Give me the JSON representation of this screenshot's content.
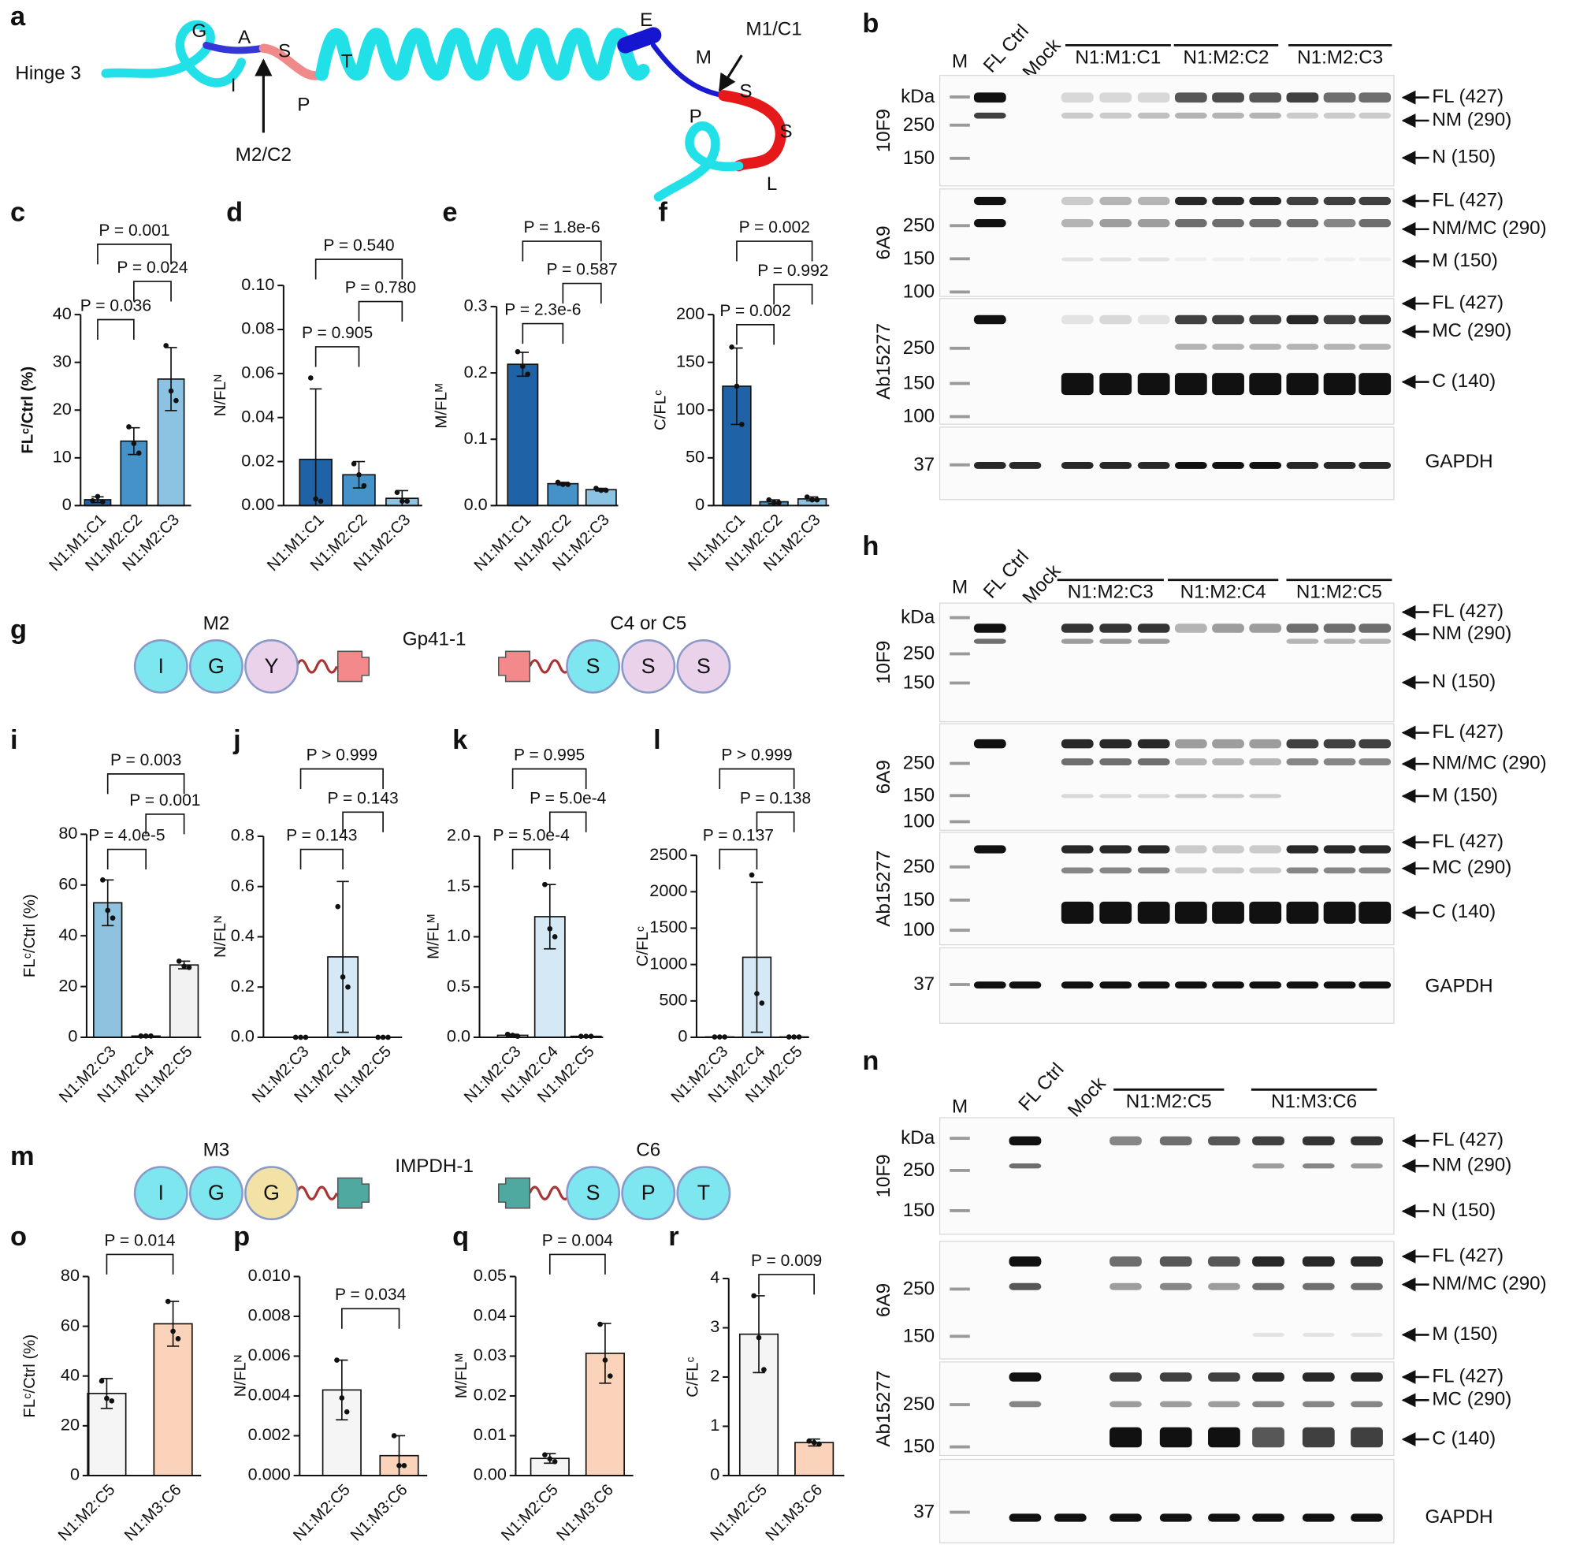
{
  "chart_data": [
    {
      "type": "bar",
      "panel": "c",
      "ylabel": "FLᶜ/Ctrl (%)",
      "categories": [
        "N1:M1:C1",
        "N1:M2:C2",
        "N1:M2:C3"
      ],
      "values": [
        1.23,
        13.5,
        26.5
      ],
      "errors": [
        0.6,
        2.8,
        6.6
      ],
      "points": [
        [
          1.0,
          1.9,
          0.8
        ],
        [
          16.5,
          13,
          11
        ],
        [
          33.5,
          24,
          22
        ]
      ],
      "colors": [
        "#1f63a6",
        "#4592c8",
        "#8cc3e2"
      ],
      "ylim": [
        0,
        40
      ],
      "yticks": [
        0,
        10,
        20,
        30,
        40
      ],
      "annotations": [
        {
          "text": "P = 0.001",
          "from": "N1:M1:C1",
          "to": "N1:M2:C3"
        },
        {
          "text": "P = 0.024",
          "from": "N1:M2:C2",
          "to": "N1:M2:C3"
        },
        {
          "text": "P = 0.036",
          "from": "N1:M1:C1",
          "to": "N1:M2:C2"
        }
      ]
    },
    {
      "type": "bar",
      "panel": "d",
      "ylabel": "N/FLᴺ",
      "categories": [
        "N1:M1:C1",
        "N1:M2:C2",
        "N1:M2:C3"
      ],
      "values": [
        0.021,
        0.014,
        0.0033
      ],
      "errors": [
        0.032,
        0.006,
        0.0035
      ],
      "points": [
        [
          0.058,
          0.003,
          0.002
        ],
        [
          0.019,
          0.014,
          0.009
        ],
        [
          0.006,
          0.002,
          0.002
        ]
      ],
      "colors": [
        "#1f63a6",
        "#4592c8",
        "#8cc3e2"
      ],
      "ylim": [
        0,
        0.1
      ],
      "yticks": [
        {
          "value": 0,
          "label": "0.00"
        },
        0.02,
        0.04,
        0.06,
        0.08,
        {
          "value": 0.1,
          "label": "0.10"
        }
      ],
      "annotations": [
        {
          "text": "P = 0.540",
          "from": "N1:M1:C1",
          "to": "N1:M2:C3"
        },
        {
          "text": "P = 0.780",
          "from": "N1:M2:C2",
          "to": "N1:M2:C3"
        },
        {
          "text": "P = 0.905",
          "from": "N1:M1:C1",
          "to": "N1:M2:C2"
        }
      ]
    },
    {
      "type": "bar",
      "panel": "e",
      "ylabel": "M/FLᴹ",
      "categories": [
        "N1:M1:C1",
        "N1:M2:C2",
        "N1:M2:C3"
      ],
      "values": [
        0.213,
        0.033,
        0.024
      ],
      "errors": [
        0.018,
        0.002,
        0.002
      ],
      "points": [
        [
          0.232,
          0.21,
          0.198
        ],
        [
          0.035,
          0.032,
          0.032
        ],
        [
          0.026,
          0.023,
          0.023
        ]
      ],
      "colors": [
        "#1f63a6",
        "#4592c8",
        "#8cc3e2"
      ],
      "ylim": [
        0,
        0.3
      ],
      "yticks": [
        {
          "value": 0,
          "label": "0.0"
        },
        0.1,
        0.2,
        0.3
      ],
      "annotations": [
        {
          "text": "P = 1.8e-6",
          "from": "N1:M1:C1",
          "to": "N1:M2:C3"
        },
        {
          "text": "P = 0.587",
          "from": "N1:M2:C2",
          "to": "N1:M2:C3"
        },
        {
          "text": "P = 2.3e-6",
          "from": "N1:M1:C1",
          "to": "N1:M2:C2"
        }
      ]
    },
    {
      "type": "bar",
      "panel": "f",
      "ylabel": "C/FLᶜ",
      "categories": [
        "N1:M1:C1",
        "N1:M2:C2",
        "N1:M2:C3"
      ],
      "values": [
        125,
        4,
        7
      ],
      "errors": [
        40,
        2,
        2
      ],
      "points": [
        [
          166,
          125,
          85
        ],
        [
          6,
          3,
          3
        ],
        [
          9,
          6,
          6
        ]
      ],
      "colors": [
        "#1f63a6",
        "#4592c8",
        "#8cc3e2"
      ],
      "ylim": [
        0,
        200
      ],
      "yticks": [
        0,
        50,
        100,
        150,
        200
      ],
      "annotations": [
        {
          "text": "P = 0.002",
          "from": "N1:M1:C1",
          "to": "N1:M2:C3"
        },
        {
          "text": "P = 0.992",
          "from": "N1:M2:C2",
          "to": "N1:M2:C3"
        },
        {
          "text": "P = 0.002",
          "from": "N1:M1:C1",
          "to": "N1:M2:C2"
        }
      ]
    },
    {
      "type": "bar",
      "panel": "i",
      "ylabel": "FLᶜ/Ctrl (%)",
      "categories": [
        "N1:M2:C3",
        "N1:M2:C4",
        "N1:M2:C5"
      ],
      "values": [
        53,
        0.5,
        28.5
      ],
      "errors": [
        9,
        0.3,
        1.5
      ],
      "points": [
        [
          62,
          50,
          47
        ],
        [
          0.5,
          0.5,
          0.5
        ],
        [
          30,
          28,
          27.5
        ]
      ],
      "colors": [
        "#8fc2de",
        "#ffffff",
        "#f2f2f2"
      ],
      "ylim": [
        0,
        80
      ],
      "yticks": [
        0,
        20,
        40,
        60,
        80
      ],
      "annotations": [
        {
          "text": "P = 0.003",
          "from": "N1:M2:C3",
          "to": "N1:M2:C5"
        },
        {
          "text": "P = 0.001",
          "from": "N1:M2:C4",
          "to": "N1:M2:C5"
        },
        {
          "text": "P = 4.0e-5",
          "from": "N1:M2:C3",
          "to": "N1:M2:C4"
        }
      ]
    },
    {
      "type": "bar",
      "panel": "j",
      "ylabel": "N/FLᴺ",
      "categories": [
        "N1:M2:C3",
        "N1:M2:C4",
        "N1:M2:C5"
      ],
      "values": [
        0,
        0.32,
        0
      ],
      "errors": [
        0,
        0.3,
        0
      ],
      "points": [
        [
          0,
          0,
          0
        ],
        [
          0.52,
          0.24,
          0.2
        ],
        [
          0,
          0,
          0
        ]
      ],
      "colors": [
        "#ffffff",
        "#d4e8f5",
        "#ffffff"
      ],
      "ylim": [
        0,
        0.8
      ],
      "yticks": [
        {
          "value": 0,
          "label": "0.0"
        },
        0.2,
        0.4,
        0.6,
        0.8
      ],
      "annotations": [
        {
          "text": "P > 0.999",
          "from": "N1:M2:C3",
          "to": "N1:M2:C5"
        },
        {
          "text": "P = 0.143",
          "from": "N1:M2:C4",
          "to": "N1:M2:C5"
        },
        {
          "text": "P = 0.143",
          "from": "N1:M2:C3",
          "to": "N1:M2:C4"
        }
      ]
    },
    {
      "type": "bar",
      "panel": "k",
      "ylabel": "M/FLᴹ",
      "categories": [
        "N1:M2:C3",
        "N1:M2:C4",
        "N1:M2:C5"
      ],
      "values": [
        0.02,
        1.2,
        0.01
      ],
      "errors": [
        0.01,
        0.32,
        0.005
      ],
      "points": [
        [
          0.03,
          0.02,
          0.01
        ],
        [
          1.52,
          1.08,
          1.0
        ],
        [
          0.01,
          0.01,
          0.01
        ]
      ],
      "colors": [
        "#ffffff",
        "#d4e8f5",
        "#ffffff"
      ],
      "ylim": [
        0,
        2
      ],
      "yticks": [
        {
          "value": 0,
          "label": "0.0"
        },
        0.5,
        {
          "value": 1,
          "label": "1.0"
        },
        1.5,
        {
          "value": 2,
          "label": "2.0"
        }
      ],
      "annotations": [
        {
          "text": "P = 0.995",
          "from": "N1:M2:C3",
          "to": "N1:M2:C5"
        },
        {
          "text": "P = 5.0e-4",
          "from": "N1:M2:C4",
          "to": "N1:M2:C5"
        },
        {
          "text": "P = 5.0e-4",
          "from": "N1:M2:C3",
          "to": "N1:M2:C4"
        }
      ]
    },
    {
      "type": "bar",
      "panel": "l",
      "ylabel": "C/FLᶜ",
      "categories": [
        "N1:M2:C3",
        "N1:M2:C4",
        "N1:M2:C5"
      ],
      "values": [
        5,
        1100,
        5
      ],
      "errors": [
        2,
        1030,
        2
      ],
      "points": [
        [
          5,
          5,
          5
        ],
        [
          2230,
          600,
          470
        ],
        [
          5,
          5,
          5
        ]
      ],
      "colors": [
        "#ffffff",
        "#d4e8f5",
        "#ffffff"
      ],
      "ylim": [
        0,
        2500
      ],
      "yticks": [
        0,
        500,
        1000,
        1500,
        2000,
        2500
      ],
      "annotations": [
        {
          "text": "P > 0.999",
          "from": "N1:M2:C3",
          "to": "N1:M2:C5"
        },
        {
          "text": "P = 0.138",
          "from": "N1:M2:C4",
          "to": "N1:M2:C5"
        },
        {
          "text": "P = 0.137",
          "from": "N1:M2:C3",
          "to": "N1:M2:C4"
        }
      ]
    },
    {
      "type": "bar",
      "panel": "o",
      "ylabel": "FLᶜ/Ctrl (%)",
      "categories": [
        "N1:M2:C5",
        "N1:M3:C6"
      ],
      "values": [
        33,
        61
      ],
      "errors": [
        6,
        9
      ],
      "points": [
        [
          38,
          31,
          30
        ],
        [
          70,
          58,
          55
        ]
      ],
      "colors": [
        "#f5f5f5",
        "#fbd3ba"
      ],
      "ylim": [
        0,
        80
      ],
      "yticks": [
        0,
        20,
        40,
        60,
        80
      ],
      "annotations": [
        {
          "text": "P = 0.014",
          "from": "N1:M2:C5",
          "to": "N1:M3:C6"
        }
      ]
    },
    {
      "type": "bar",
      "panel": "p",
      "ylabel": "N/FLᴺ",
      "categories": [
        "N1:M2:C5",
        "N1:M3:C6"
      ],
      "values": [
        0.0043,
        0.001
      ],
      "errors": [
        0.0015,
        0.001
      ],
      "points": [
        [
          0.0058,
          0.0039,
          0.0032
        ],
        [
          0.002,
          0.0005,
          0.0005
        ]
      ],
      "colors": [
        "#f5f5f5",
        "#fbd3ba"
      ],
      "ylim": [
        0,
        0.01
      ],
      "yticks": [
        {
          "value": 0,
          "label": "0.000"
        },
        0.002,
        0.004,
        0.006,
        0.008,
        {
          "value": 0.01,
          "label": "0.010"
        }
      ],
      "annotations": [
        {
          "text": "P = 0.034",
          "from": "N1:M2:C5",
          "to": "N1:M3:C6"
        }
      ]
    },
    {
      "type": "bar",
      "panel": "q",
      "ylabel": "M/FLᴹ",
      "categories": [
        "N1:M2:C5",
        "N1:M3:C6"
      ],
      "values": [
        0.0043,
        0.0307
      ],
      "errors": [
        0.0012,
        0.0075
      ],
      "points": [
        [
          0.0052,
          0.0042,
          0.0035
        ],
        [
          0.038,
          0.029,
          0.025
        ]
      ],
      "colors": [
        "#f5f5f5",
        "#fbd3ba"
      ],
      "ylim": [
        0,
        0.05
      ],
      "yticks": [
        {
          "value": 0,
          "label": "0.00"
        },
        0.01,
        0.02,
        0.03,
        0.04,
        0.05
      ],
      "annotations": [
        {
          "text": "P = 0.004",
          "from": "N1:M2:C5",
          "to": "N1:M3:C6"
        }
      ]
    },
    {
      "type": "bar",
      "panel": "r",
      "ylabel": "C/FLᶜ",
      "categories": [
        "N1:M2:C5",
        "N1:M3:C6"
      ],
      "values": [
        2.87,
        0.67
      ],
      "errors": [
        0.78,
        0.07
      ],
      "points": [
        [
          3.65,
          2.8,
          2.15
        ],
        [
          0.7,
          0.67,
          0.64
        ]
      ],
      "colors": [
        "#f5f5f5",
        "#fbd3ba"
      ],
      "ylim": [
        0,
        4
      ],
      "yticks": [
        0,
        1,
        2,
        3,
        4
      ],
      "annotations": [
        {
          "text": "P = 0.009",
          "from": "N1:M2:C5",
          "to": "N1:M3:C6"
        }
      ]
    }
  ],
  "diagram_a": {
    "panel": "a",
    "label": "Hinge 3",
    "residues": [
      "G",
      "A",
      "I",
      "S",
      "P",
      "T",
      "E",
      "M",
      "P",
      "S",
      "S",
      "L"
    ],
    "sites": [
      "M1/C1",
      "M2/C2"
    ]
  },
  "diagrams": [
    {
      "panel": "g",
      "left_label": "M2",
      "center_label": "Gp41-1",
      "right_label": "C4 or C5",
      "left_residues": [
        "I",
        "G",
        "Y"
      ],
      "right_residues": [
        "S",
        "S",
        "S"
      ]
    },
    {
      "panel": "m",
      "left_label": "M3",
      "center_label": "IMPDH-1",
      "right_label": "C6",
      "left_residues": [
        "I",
        "G",
        "G"
      ],
      "right_residues": [
        "S",
        "P",
        "T"
      ]
    }
  ],
  "blots": [
    {
      "panel": "b",
      "lanes": [
        "M",
        "FL Ctrl",
        "Mock"
      ],
      "groups": [
        "N1:M1:C1",
        "N1:M2:C2",
        "N1:M2:C3"
      ],
      "strips": [
        {
          "antibody": "10F9",
          "markers": [
            "kDa",
            "250",
            "150"
          ],
          "bands": [
            "FL (427)",
            "NM (290)",
            "N (150)"
          ]
        },
        {
          "antibody": "6A9",
          "markers": [
            "250",
            "150",
            "100"
          ],
          "bands": [
            "FL (427)",
            "NM/MC (290)",
            "M (150)"
          ]
        },
        {
          "antibody": "Ab15277",
          "markers": [
            "250",
            "150",
            "100"
          ],
          "bands": [
            "FL (427)",
            "MC (290)",
            "C (140)"
          ]
        },
        {
          "markers": [
            "37"
          ],
          "bands": [
            "GAPDH"
          ]
        }
      ]
    },
    {
      "panel": "h",
      "lanes": [
        "M",
        "FL Ctrl",
        "Mock"
      ],
      "groups": [
        "N1:M2:C3",
        "N1:M2:C4",
        "N1:M2:C5"
      ],
      "strips": [
        {
          "antibody": "10F9",
          "markers": [
            "kDa",
            "250",
            "150"
          ],
          "bands": [
            "FL (427)",
            "NM (290)",
            "N (150)"
          ]
        },
        {
          "antibody": "6A9",
          "markers": [
            "250",
            "150",
            "100"
          ],
          "bands": [
            "FL (427)",
            "NM/MC (290)",
            "M (150)"
          ]
        },
        {
          "antibody": "Ab15277",
          "markers": [
            "250",
            "150",
            "100"
          ],
          "bands": [
            "FL (427)",
            "MC (290)",
            "C (140)"
          ]
        },
        {
          "markers": [
            "37"
          ],
          "bands": [
            "GAPDH"
          ]
        }
      ]
    },
    {
      "panel": "n",
      "lanes": [
        "M",
        "FL Ctrl",
        "Mock"
      ],
      "groups": [
        "N1:M2:C5",
        "N1:M3:C6"
      ],
      "strips": [
        {
          "antibody": "10F9",
          "markers": [
            "kDa",
            "250",
            "150"
          ],
          "bands": [
            "FL (427)",
            "NM (290)",
            "N (150)"
          ]
        },
        {
          "antibody": "6A9",
          "markers": [
            "250",
            "150"
          ],
          "bands": [
            "FL (427)",
            "NM/MC (290)",
            "M (150)"
          ]
        },
        {
          "antibody": "Ab15277",
          "markers": [
            "250",
            "150"
          ],
          "bands": [
            "FL (427)",
            "MC (290)",
            "C (140)"
          ]
        },
        {
          "markers": [
            "37"
          ],
          "bands": [
            "GAPDH"
          ]
        }
      ]
    }
  ]
}
